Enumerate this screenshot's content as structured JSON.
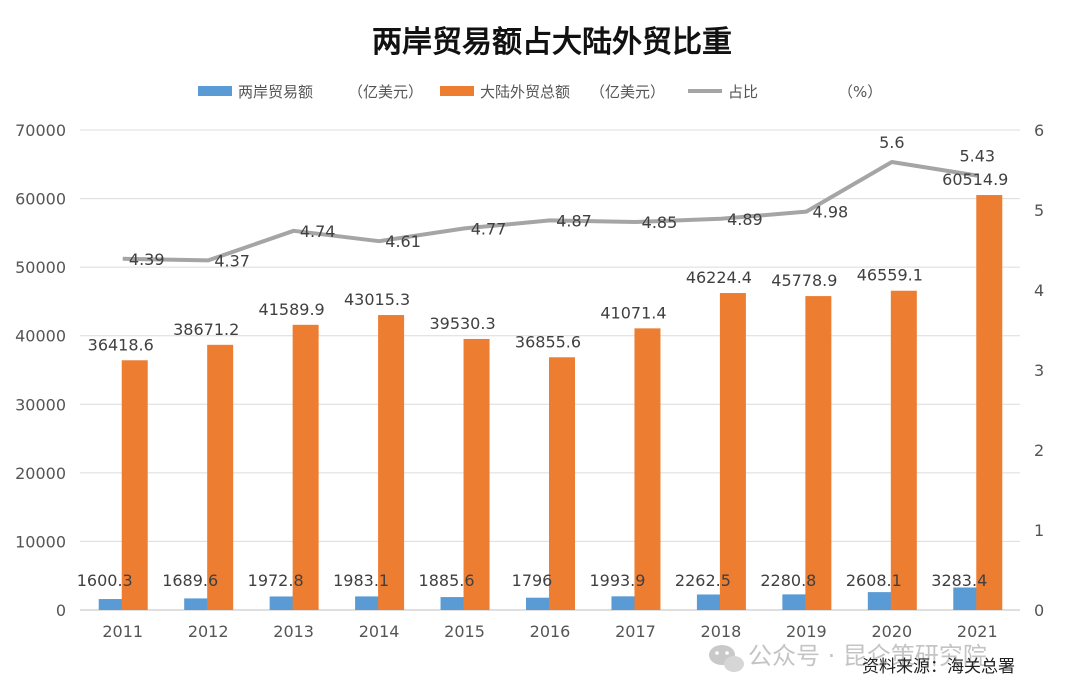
{
  "chart_data": {
    "type": "bar",
    "title": "两岸贸易额占大陆外贸比重",
    "categories": [
      "2011",
      "2012",
      "2013",
      "2014",
      "2015",
      "2016",
      "2017",
      "2018",
      "2019",
      "2020",
      "2021"
    ],
    "series": [
      {
        "name": "两岸贸易额",
        "unit": "（亿美元）",
        "type": "bar",
        "axis": "left",
        "color": "#5b9bd5",
        "values": [
          1600.3,
          1689.6,
          1972.8,
          1983.1,
          1885.6,
          1796,
          1993.9,
          2262.5,
          2280.8,
          2608.1,
          3283.4
        ]
      },
      {
        "name": "大陆外贸总额",
        "unit": "（亿美元）",
        "type": "bar",
        "axis": "left",
        "color": "#ed7d31",
        "values": [
          36418.6,
          38671.2,
          41589.9,
          43015.3,
          39530.3,
          36855.6,
          41071.4,
          46224.4,
          45778.9,
          46559.1,
          60514.9
        ]
      },
      {
        "name": "占比",
        "unit": "（%）",
        "type": "line",
        "axis": "right",
        "color": "#a5a5a5",
        "values": [
          4.39,
          4.37,
          4.74,
          4.61,
          4.77,
          4.87,
          4.85,
          4.89,
          4.98,
          5.6,
          5.43
        ]
      }
    ],
    "yleft": {
      "min": 0,
      "max": 70000,
      "ticks": [
        0,
        10000,
        20000,
        30000,
        40000,
        50000,
        60000,
        70000
      ]
    },
    "yright": {
      "min": 0,
      "max": 6,
      "ticks": [
        0,
        1,
        2,
        3,
        4,
        5,
        6
      ]
    },
    "grid": true,
    "legend": "top-center"
  },
  "source": "资料来源：海关总署",
  "watermark": "公众号 · 昆仑策研究院"
}
